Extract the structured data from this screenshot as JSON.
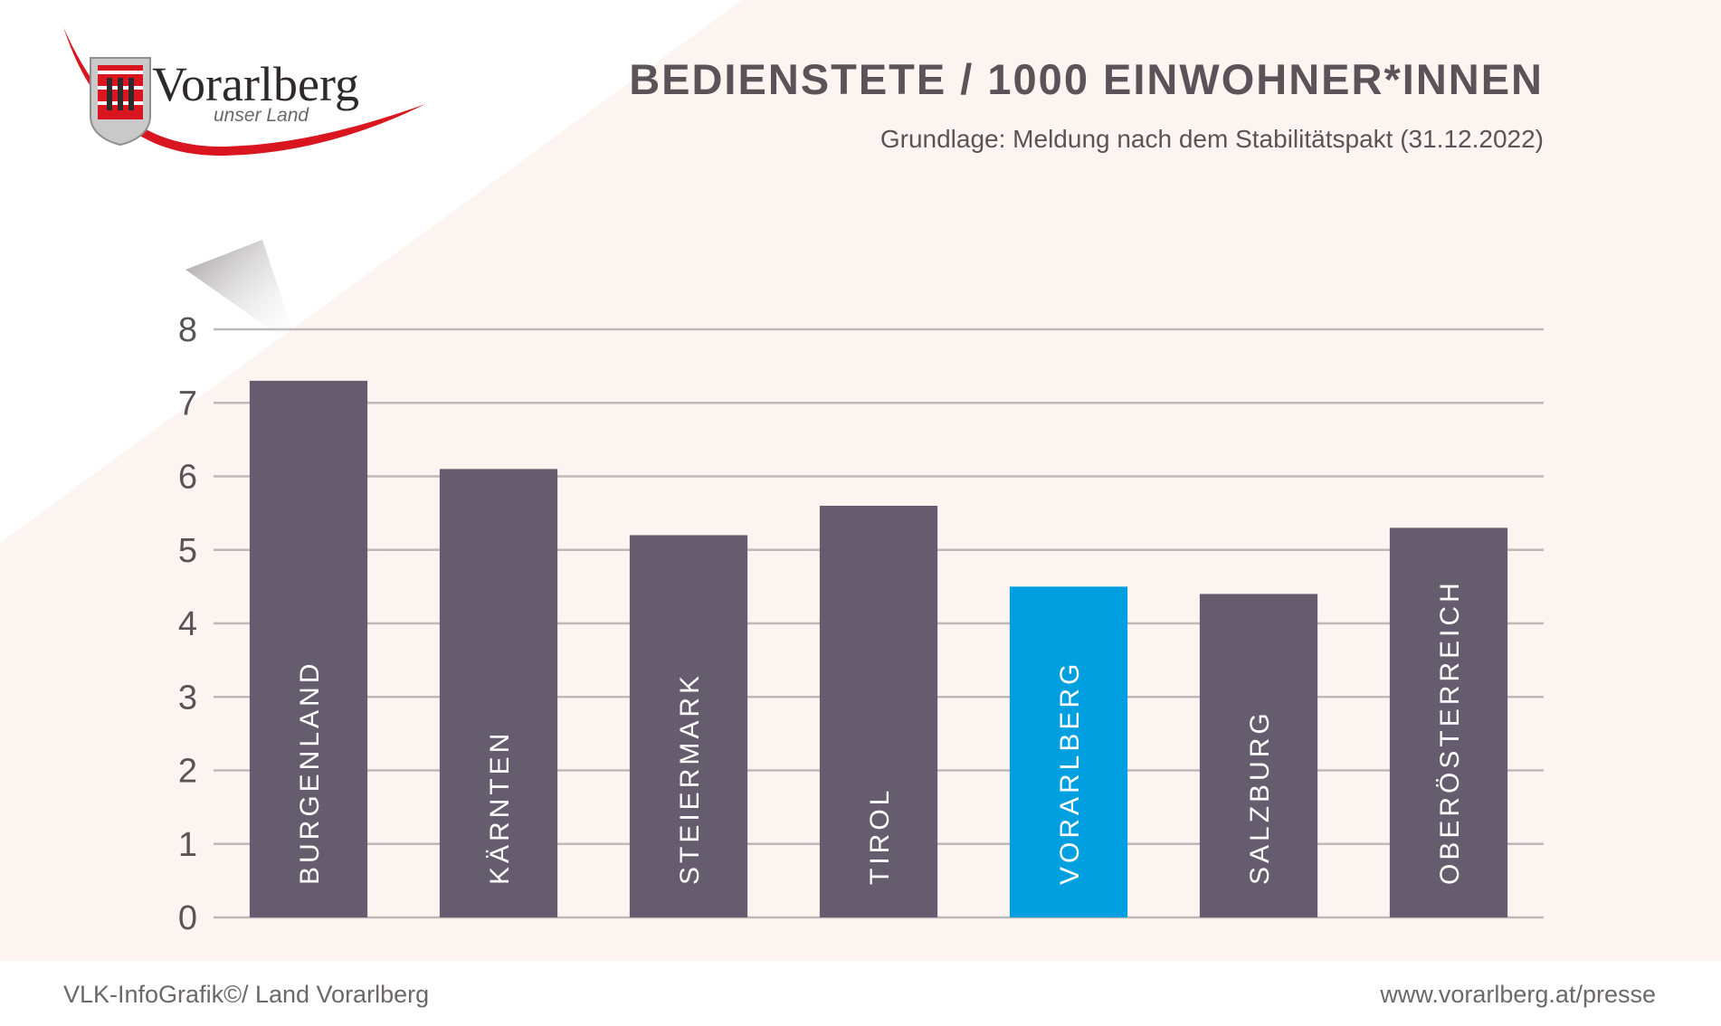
{
  "logo": {
    "wordmark": "Vorarlberg",
    "tagline": "unser Land",
    "icon": "vorarlberg-coat-of-arms-icon"
  },
  "header": {
    "title": "BEDIENSTETE / 1000 EINWOHNER*INNEN",
    "subtitle": "Grundlage: Meldung nach dem Stabilitätspakt (31.12.2022)"
  },
  "footer": {
    "left": "VLK-InfoGrafik©/ Land Vorarlberg",
    "right": "www.vorarlberg.at/presse"
  },
  "colors": {
    "background": "#fcf4f1",
    "bar": "#655d6e",
    "highlight": "#009fe0",
    "grid": "#bdb9ba",
    "text": "#5a5357",
    "logo_red": "#d9161f"
  },
  "chart_data": {
    "type": "bar",
    "title": "BEDIENSTETE / 1000 EINWOHNER*INNEN",
    "subtitle": "Grundlage: Meldung nach dem Stabilitätspakt (31.12.2022)",
    "categories": [
      "BURGENLAND",
      "KÄRNTEN",
      "STEIERMARK",
      "TIROL",
      "VORARLBERG",
      "SALZBURG",
      "OBERÖSTERREICH"
    ],
    "values": [
      7.3,
      6.1,
      5.2,
      5.6,
      4.5,
      4.4,
      5.3
    ],
    "highlight": "VORARLBERG",
    "ylim": [
      0,
      8
    ],
    "yticks": [
      "0",
      "1",
      "2",
      "3",
      "4",
      "5",
      "6",
      "7",
      "8"
    ],
    "grid": true,
    "xlabel": "",
    "ylabel": ""
  }
}
